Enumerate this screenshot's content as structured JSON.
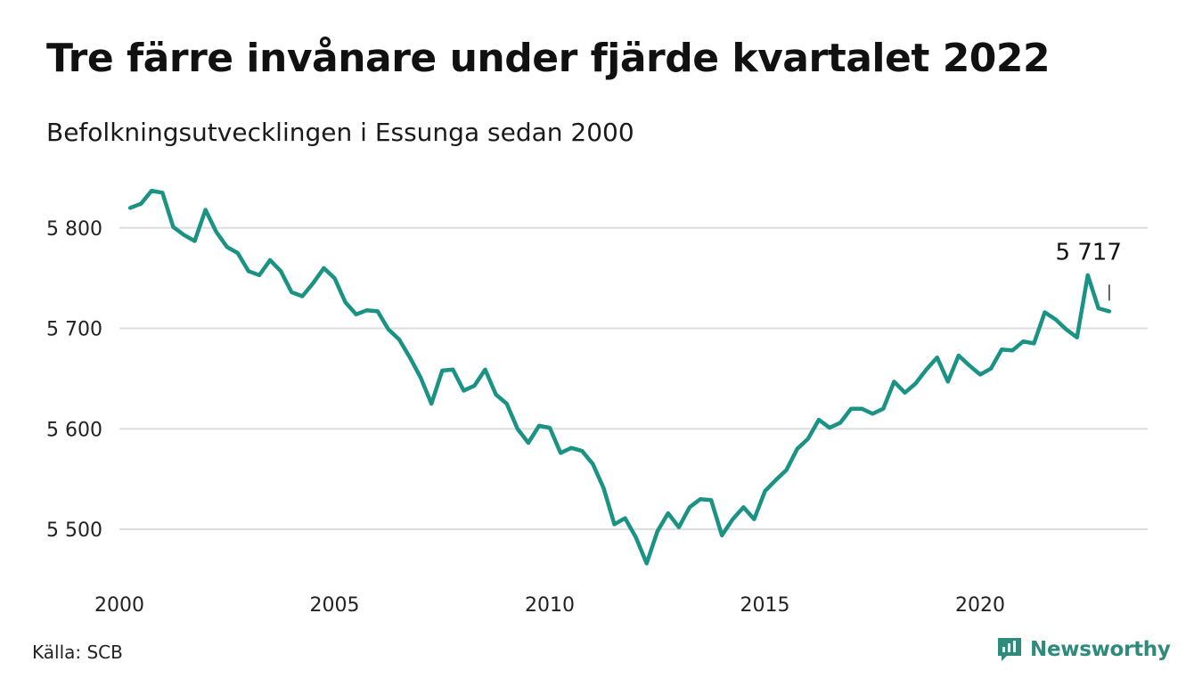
{
  "title": "Tre färre invånare under fjärde kvartalet 2022",
  "subtitle": "Befolkningsutvecklingen i Essunga sedan 2000",
  "source": "Källa: SCB",
  "brand": {
    "name": "Newsworthy",
    "icon": "newsworthy-logo-icon"
  },
  "colors": {
    "line": "#1a9385",
    "grid": "#dddddd",
    "brand": "#2e8b7c",
    "text": "#111111"
  },
  "chart_data": {
    "type": "line",
    "title": "Tre färre invånare under fjärde kvartalet 2022",
    "subtitle": "Befolkningsutvecklingen i Essunga sedan 2000",
    "xlabel": "",
    "ylabel": "",
    "x_ticks": [
      "2000",
      "2005",
      "2010",
      "2015",
      "2020"
    ],
    "y_ticks": [
      "5 500",
      "5 600",
      "5 700",
      "5 800"
    ],
    "y_tick_values": [
      5500,
      5600,
      5700,
      5800
    ],
    "xlim": [
      2000,
      2023
    ],
    "ylim": [
      5450,
      5840
    ],
    "grid": true,
    "annotation": {
      "label": "5 717"
    },
    "series": [
      {
        "x": [
          2000.25,
          2000.5,
          2000.75,
          2001.0,
          2001.25,
          2001.5,
          2001.75,
          2002.0,
          2002.25,
          2002.5,
          2002.75,
          2003.0,
          2003.25,
          2003.5,
          2003.75,
          2004.0,
          2004.25,
          2004.5,
          2004.75,
          2005.0,
          2005.25,
          2005.5,
          2005.75,
          2006.0,
          2006.25,
          2006.5,
          2006.75,
          2007.0,
          2007.25,
          2007.5,
          2007.75,
          2008.0,
          2008.25,
          2008.5,
          2008.75,
          2009.0,
          2009.25,
          2009.5,
          2009.75,
          2010.0,
          2010.25,
          2010.5,
          2010.75,
          2011.0,
          2011.25,
          2011.5,
          2011.75,
          2012.0,
          2012.25,
          2012.5,
          2012.75,
          2013.0,
          2013.25,
          2013.5,
          2013.75,
          2014.0,
          2014.25,
          2014.5,
          2014.75,
          2015.0,
          2015.25,
          2015.5,
          2015.75,
          2016.0,
          2016.25,
          2016.5,
          2016.75,
          2017.0,
          2017.25,
          2017.5,
          2017.75,
          2018.0,
          2018.25,
          2018.5,
          2018.75,
          2019.0,
          2019.25,
          2019.5,
          2019.75,
          2020.0,
          2020.25,
          2020.5,
          2020.75,
          2021.0,
          2021.25,
          2021.5,
          2021.75,
          2022.0,
          2022.25,
          2022.5,
          2022.75,
          2023.0
        ],
        "values": [
          5820,
          5824,
          5837,
          5835,
          5801,
          5793,
          5787,
          5818,
          5796,
          5781,
          5775,
          5757,
          5753,
          5768,
          5757,
          5736,
          5732,
          5745,
          5760,
          5750,
          5726,
          5714,
          5718,
          5717,
          5699,
          5689,
          5671,
          5651,
          5625,
          5658,
          5659,
          5638,
          5643,
          5659,
          5634,
          5625,
          5600,
          5586,
          5603,
          5601,
          5576,
          5581,
          5578,
          5565,
          5541,
          5505,
          5511,
          5492,
          5466,
          5498,
          5516,
          5502,
          5522,
          5530,
          5529,
          5494,
          5510,
          5522,
          5510,
          5538,
          5549,
          5559,
          5580,
          5590,
          5609,
          5601,
          5606,
          5620,
          5620,
          5615,
          5620,
          5647,
          5636,
          5645,
          5659,
          5671,
          5647,
          5673,
          5663,
          5654,
          5660,
          5679,
          5678,
          5687,
          5685,
          5716,
          5709,
          5699,
          5691,
          5753,
          5720,
          5717
        ]
      }
    ]
  }
}
